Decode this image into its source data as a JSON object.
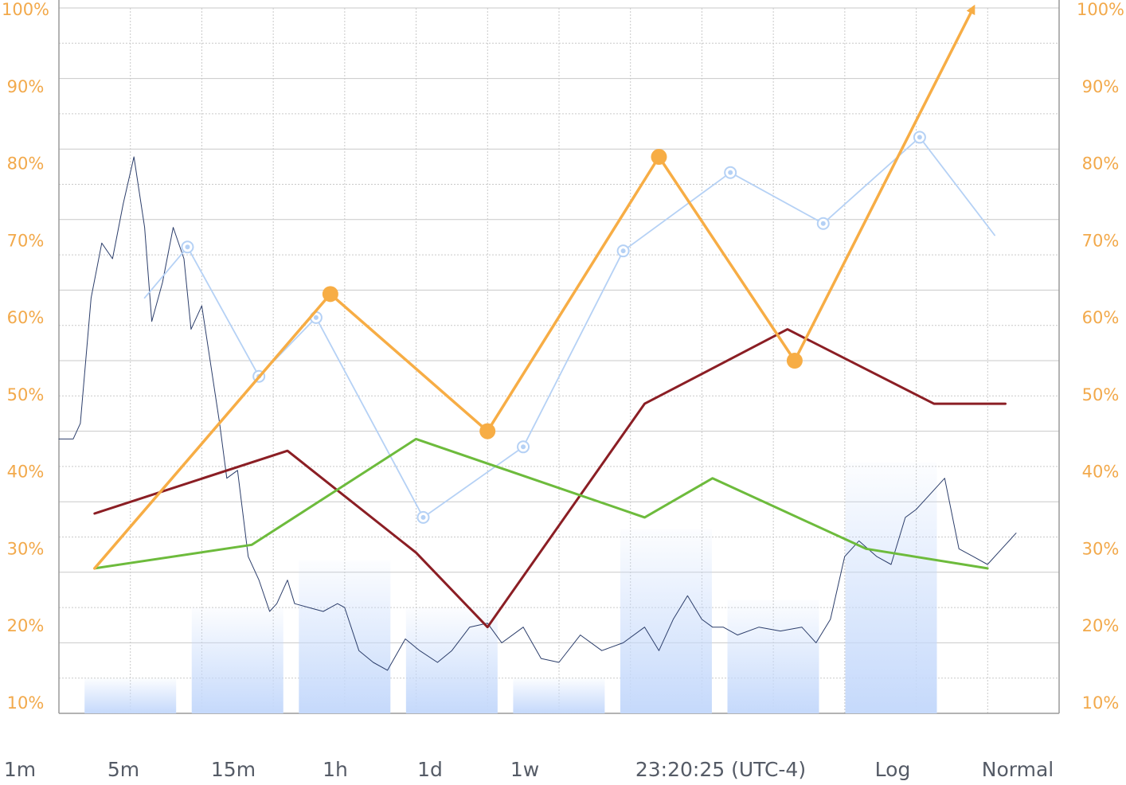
{
  "colors": {
    "tick_label": "#f2a94b",
    "grid": "#c9c9c9",
    "axis": "#9a9a9a",
    "bars": "#c5d9fb",
    "price_line": "#2c3e6b",
    "orange": "#f7ad45",
    "light_blue": "#b5d1f5",
    "dark_red": "#8b1e24",
    "green": "#6dbb3c"
  },
  "toolbar": {
    "items": [
      "1m",
      "5m",
      "15m",
      "1h",
      "1d",
      "1w"
    ],
    "time": "23:20:25 (UTC-4)",
    "log": "Log",
    "normal": "Normal"
  },
  "chart_data": {
    "type": "line",
    "y_axis_left_ticks": [
      "100%",
      "90%",
      "80%",
      "70%",
      "60%",
      "50%",
      "40%",
      "30%",
      "20%",
      "10%"
    ],
    "y_axis_right_ticks": [
      "100%",
      "90%",
      "80%",
      "70%",
      "60%",
      "50%",
      "40%",
      "30%",
      "20%",
      "10%"
    ],
    "ylim": [
      10,
      100
    ],
    "grid": true,
    "bars": {
      "x": [
        1.0,
        2.5,
        4.0,
        5.5,
        7.0,
        8.5,
        10.0,
        11.65
      ],
      "values": [
        14.5,
        23.5,
        29.5,
        23.5,
        14.5,
        33.5,
        24.5,
        42.0
      ]
    },
    "series": [
      {
        "color": "orange",
        "style": "thick-with-markers",
        "x": [
          0.5,
          3.8,
          6.0,
          8.4,
          10.3,
          12.8
        ],
        "values": [
          28.5,
          63.5,
          46.0,
          81.0,
          55.0,
          100.0
        ]
      },
      {
        "color": "light_blue",
        "style": "thin-with-ring-markers",
        "x": [
          1.2,
          1.8,
          2.8,
          3.6,
          5.1,
          6.5,
          7.9,
          9.4,
          10.7,
          12.05,
          13.1
        ],
        "values": [
          63.0,
          69.5,
          53.0,
          60.5,
          35.0,
          44.0,
          69.0,
          79.0,
          72.5,
          83.5,
          71.0
        ]
      },
      {
        "color": "dark_red",
        "style": "medium",
        "x": [
          0.5,
          3.2,
          5.0,
          6.0,
          8.2,
          10.2,
          12.25,
          13.25
        ],
        "values": [
          35.5,
          43.5,
          30.5,
          21.0,
          49.5,
          59.0,
          49.5,
          49.5
        ]
      },
      {
        "color": "green",
        "style": "medium",
        "x": [
          0.5,
          2.7,
          5.0,
          8.2,
          9.15,
          11.3,
          13.0
        ],
        "values": [
          28.5,
          31.5,
          45.0,
          35.0,
          40.0,
          31.0,
          28.5
        ]
      },
      {
        "color": "price_line",
        "style": "noisy-thin",
        "x": [
          0.0,
          0.2,
          0.3,
          0.45,
          0.6,
          0.75,
          0.9,
          1.05,
          1.2,
          1.3,
          1.45,
          1.6,
          1.75,
          1.85,
          2.0,
          2.1,
          2.25,
          2.35,
          2.5,
          2.65,
          2.8,
          2.95,
          3.05,
          3.2,
          3.3,
          3.5,
          3.7,
          3.9,
          4.0,
          4.2,
          4.4,
          4.6,
          4.85,
          5.05,
          5.3,
          5.5,
          5.75,
          6.0,
          6.2,
          6.5,
          6.75,
          7.0,
          7.3,
          7.6,
          7.9,
          8.2,
          8.4,
          8.6,
          8.8,
          9.0,
          9.15,
          9.3,
          9.5,
          9.8,
          10.1,
          10.4,
          10.6,
          10.8,
          11.0,
          11.2,
          11.45,
          11.65,
          11.85,
          12.0,
          12.2,
          12.4,
          12.6,
          12.8,
          13.0,
          13.2,
          13.4
        ],
        "values": [
          45.0,
          45.0,
          47.0,
          63.0,
          70.0,
          68.0,
          75.0,
          81.0,
          72.0,
          60.0,
          65.0,
          72.0,
          68.0,
          59.0,
          62.0,
          56.0,
          47.0,
          40.0,
          41.0,
          30.0,
          27.0,
          23.0,
          24.0,
          27.0,
          24.0,
          23.5,
          23.0,
          24.0,
          23.5,
          18.0,
          16.5,
          15.5,
          19.5,
          18.0,
          16.5,
          18.0,
          21.0,
          21.5,
          19.0,
          21.0,
          17.0,
          16.5,
          20.0,
          18.0,
          19.0,
          21.0,
          18.0,
          22.0,
          25.0,
          22.0,
          21.0,
          21.0,
          20.0,
          21.0,
          20.5,
          21.0,
          19.0,
          22.0,
          30.0,
          32.0,
          30.0,
          29.0,
          35.0,
          36.0,
          38.0,
          40.0,
          31.0,
          30.0,
          29.0,
          31.0,
          33.0
        ]
      }
    ]
  }
}
